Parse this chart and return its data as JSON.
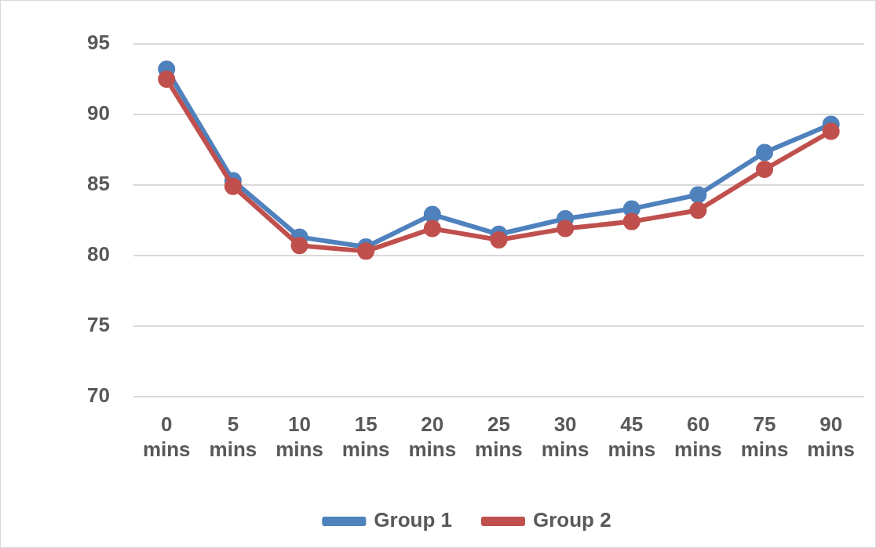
{
  "chart_data": {
    "type": "line",
    "categories": [
      "0 mins",
      "5 mins",
      "10 mins",
      "15 mins",
      "20 mins",
      "25 mins",
      "30 mins",
      "45 mins",
      "60 mins",
      "75 mins",
      "90 mins"
    ],
    "series": [
      {
        "name": "Group 1",
        "color": "#4f81bd",
        "values": [
          93.2,
          85.3,
          81.3,
          80.6,
          82.9,
          81.5,
          82.6,
          83.3,
          84.3,
          87.3,
          89.3
        ]
      },
      {
        "name": "Group 2",
        "color": "#c0504d",
        "values": [
          92.5,
          84.9,
          80.7,
          80.3,
          81.9,
          81.1,
          81.9,
          82.4,
          83.2,
          86.1,
          88.8
        ]
      }
    ],
    "ylim": [
      70,
      95
    ],
    "yticks": [
      70,
      75,
      80,
      85,
      90,
      95
    ],
    "grid": "y",
    "legend": "bottom",
    "marker": "circle",
    "line_style": "solid"
  }
}
